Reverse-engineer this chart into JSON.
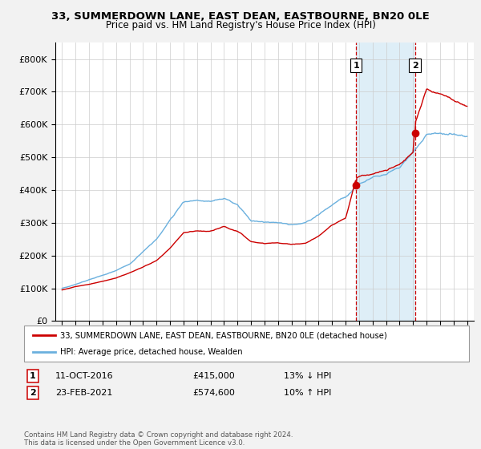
{
  "title": "33, SUMMERDOWN LANE, EAST DEAN, EASTBOURNE, BN20 0LE",
  "subtitle": "Price paid vs. HM Land Registry's House Price Index (HPI)",
  "legend_line1": "33, SUMMERDOWN LANE, EAST DEAN, EASTBOURNE, BN20 0LE (detached house)",
  "legend_line2": "HPI: Average price, detached house, Wealden",
  "annotation1": {
    "num": "1",
    "date": "11-OCT-2016",
    "price": "£415,000",
    "hpi": "13% ↓ HPI",
    "year": 2016.78
  },
  "annotation2": {
    "num": "2",
    "date": "23-FEB-2021",
    "price": "£574,600",
    "hpi": "10% ↑ HPI",
    "year": 2021.14
  },
  "hpi_color": "#6ab0de",
  "price_color": "#cc0000",
  "vline_color": "#cc0000",
  "shade_color": "#d0e8f5",
  "bg_color": "#f2f2f2",
  "plot_bg": "#ffffff",
  "footer": "Contains HM Land Registry data © Crown copyright and database right 2024.\nThis data is licensed under the Open Government Licence v3.0.",
  "ylim": [
    0,
    850000
  ],
  "yticks": [
    0,
    100000,
    200000,
    300000,
    400000,
    500000,
    600000,
    700000,
    800000
  ],
  "xlim": [
    1994.5,
    2025.5
  ],
  "xticks": [
    1995,
    1996,
    1997,
    1998,
    1999,
    2000,
    2001,
    2002,
    2003,
    2004,
    2005,
    2006,
    2007,
    2008,
    2009,
    2010,
    2011,
    2012,
    2013,
    2014,
    2015,
    2016,
    2017,
    2018,
    2019,
    2020,
    2021,
    2022,
    2023,
    2024,
    2025
  ],
  "key_years_hpi": [
    1995,
    1996,
    1997,
    1998,
    1999,
    2000,
    2001,
    2002,
    2003,
    2004,
    2005,
    2006,
    2007,
    2008,
    2009,
    2010,
    2011,
    2012,
    2013,
    2014,
    2015,
    2016,
    2017,
    2018,
    2019,
    2020,
    2021,
    2022,
    2023,
    2024,
    2025
  ],
  "key_vals_hpi": [
    100000,
    112000,
    128000,
    140000,
    155000,
    175000,
    210000,
    250000,
    310000,
    370000,
    375000,
    370000,
    380000,
    360000,
    310000,
    305000,
    305000,
    300000,
    305000,
    330000,
    365000,
    390000,
    430000,
    450000,
    460000,
    480000,
    530000,
    590000,
    590000,
    590000,
    580000
  ],
  "key_years_price": [
    1995,
    1996,
    1997,
    1998,
    1999,
    2000,
    2001,
    2002,
    2003,
    2004,
    2005,
    2006,
    2007,
    2008,
    2009,
    2010,
    2011,
    2012,
    2013,
    2014,
    2015,
    2016,
    2016.78,
    2017,
    2018,
    2019,
    2020,
    2021,
    2021.14,
    2022,
    2023,
    2024,
    2025
  ],
  "key_vals_price": [
    95000,
    105000,
    112000,
    122000,
    132000,
    148000,
    165000,
    185000,
    220000,
    265000,
    268000,
    268000,
    280000,
    265000,
    235000,
    230000,
    232000,
    228000,
    230000,
    250000,
    280000,
    300000,
    415000,
    420000,
    430000,
    440000,
    455000,
    490000,
    574600,
    670000,
    660000,
    640000,
    630000
  ]
}
